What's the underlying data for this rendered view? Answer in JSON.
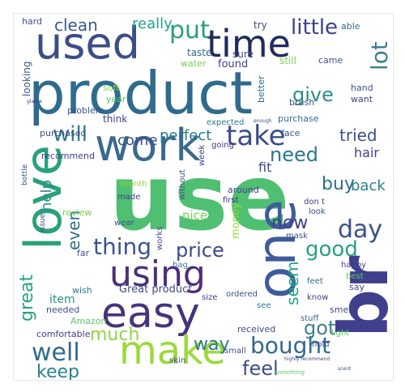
{
  "words": [
    {
      "text": "use",
      "color": "#4fbf72"
    },
    {
      "text": "product",
      "color": "#2f6b8e"
    },
    {
      "text": "used",
      "color": "#3b4d89"
    },
    {
      "text": "br",
      "color": "#3f3f8c"
    },
    {
      "text": "love",
      "color": "#2aa17b"
    },
    {
      "text": "one",
      "color": "#3e5c9c"
    },
    {
      "text": "work",
      "color": "#3a6a8d"
    },
    {
      "text": "easy",
      "color": "#46337e"
    },
    {
      "text": "using",
      "color": "#4b2f7a"
    },
    {
      "text": "time",
      "color": "#1f2c5c"
    },
    {
      "text": "make",
      "color": "#9bd93c"
    },
    {
      "text": "take",
      "color": "#3b4d89"
    },
    {
      "text": "bought",
      "color": "#31688e"
    },
    {
      "text": "lot",
      "color": "#3f7f8e"
    },
    {
      "text": "put",
      "color": "#2a9f7c"
    },
    {
      "text": "little",
      "color": "#3e3f8b"
    },
    {
      "text": "give",
      "color": "#2a8f86"
    },
    {
      "text": "really",
      "color": "#20a486"
    },
    {
      "text": "clean",
      "color": "#38598c"
    },
    {
      "text": "will",
      "color": "#2c7e8e"
    },
    {
      "text": "need",
      "color": "#2a788e"
    },
    {
      "text": "good",
      "color": "#2b9f83"
    },
    {
      "text": "thing",
      "color": "#39558c"
    },
    {
      "text": "much",
      "color": "#8ed645"
    },
    {
      "text": "well",
      "color": "#2f6b8e"
    },
    {
      "text": "keep",
      "color": "#26828e"
    },
    {
      "text": "feel",
      "color": "#3e4c8a"
    },
    {
      "text": "got",
      "color": "#3f7f8e"
    },
    {
      "text": "day",
      "color": "#3a528b"
    },
    {
      "text": "way",
      "color": "#2a788e"
    },
    {
      "text": "price",
      "color": "#3f4889"
    },
    {
      "text": "great",
      "color": "#2b9f83"
    },
    {
      "text": "buy",
      "color": "#2e6d8e"
    },
    {
      "text": "back",
      "color": "#26828e"
    },
    {
      "text": "now",
      "color": "#3f3f8c"
    },
    {
      "text": "tried",
      "color": "#3a528b"
    },
    {
      "text": "seem",
      "color": "#20a486"
    },
    {
      "text": "come",
      "color": "#3e4c8a"
    },
    {
      "text": "perfect",
      "color": "#2a788e"
    },
    {
      "text": "fit",
      "color": "#3e4c8a"
    },
    {
      "text": "hair",
      "color": "#3f3f8c"
    },
    {
      "text": "even",
      "color": "#2e6d8e"
    },
    {
      "text": "help",
      "color": "#2a8f86"
    },
    {
      "text": "nice",
      "color": "#75d054"
    },
    {
      "text": "item",
      "color": "#2a8f86"
    },
    {
      "text": "money",
      "color": "#9bd93c"
    },
    {
      "text": "Great product",
      "color": "#3f4889"
    },
    {
      "text": "found",
      "color": "#3e3f8b"
    },
    {
      "text": "still",
      "color": "#7ad151"
    },
    {
      "text": "came",
      "color": "#3a528b"
    },
    {
      "text": "taste",
      "color": "#31688e"
    },
    {
      "text": "sure",
      "color": "#3b4d89"
    },
    {
      "text": "try",
      "color": "#3e4c8a"
    },
    {
      "text": "able",
      "color": "#2e6d8e"
    },
    {
      "text": "hard",
      "color": "#3a528b"
    },
    {
      "text": "looking",
      "color": "#3a528b"
    },
    {
      "text": "water",
      "color": "#75d054"
    },
    {
      "text": "soft",
      "color": "#8ed645"
    },
    {
      "text": "year",
      "color": "#5ec962"
    },
    {
      "text": "think",
      "color": "#3e3f8b"
    },
    {
      "text": "problem",
      "color": "#3a528b"
    },
    {
      "text": "purchased",
      "color": "#3e4c8a"
    },
    {
      "text": "recommend",
      "color": "#3e3f8b"
    },
    {
      "text": "better",
      "color": "#31688e"
    },
    {
      "text": "brush",
      "color": "#3e4c8a"
    },
    {
      "text": "purchase",
      "color": "#31688e"
    },
    {
      "text": "expected",
      "color": "#2a788e"
    },
    {
      "text": "going",
      "color": "#46337e"
    },
    {
      "text": "face",
      "color": "#3a528b"
    },
    {
      "text": "hand",
      "color": "#3a528b"
    },
    {
      "text": "want",
      "color": "#3e3f8b"
    },
    {
      "text": "around",
      "color": "#3e3f8b"
    },
    {
      "text": "first",
      "color": "#46337e"
    },
    {
      "text": "don t",
      "color": "#3e3f8b"
    },
    {
      "text": "look",
      "color": "#3e4c8a"
    },
    {
      "text": "mask",
      "color": "#3a528b"
    },
    {
      "text": "happy",
      "color": "#3e3f8b"
    },
    {
      "text": "best",
      "color": "#5ec962"
    },
    {
      "text": "say",
      "color": "#3e4c8a"
    },
    {
      "text": "feet",
      "color": "#31688e"
    },
    {
      "text": "know",
      "color": "#3e3f8b"
    },
    {
      "text": "smell",
      "color": "#3e4c8a"
    },
    {
      "text": "ordered",
      "color": "#3a528b"
    },
    {
      "text": "see",
      "color": "#2a788e"
    },
    {
      "text": "received",
      "color": "#3e4c8a"
    },
    {
      "text": "light",
      "color": "#5ec962"
    },
    {
      "text": "hold",
      "color": "#3a528b"
    },
    {
      "text": "stuff",
      "color": "#31688e"
    },
    {
      "text": "small",
      "color": "#3e4c8a"
    },
    {
      "text": "comfortable",
      "color": "#3e3f8b"
    },
    {
      "text": "Amazon",
      "color": "#5ec962"
    },
    {
      "text": "wish",
      "color": "#2a788e"
    },
    {
      "text": "needed",
      "color": "#3e4c8a"
    },
    {
      "text": "wear",
      "color": "#3a528b"
    },
    {
      "text": "review",
      "color": "#75d054"
    },
    {
      "text": "made",
      "color": "#3e3f8b"
    },
    {
      "text": "far",
      "color": "#3e4c8a"
    },
    {
      "text": "bag",
      "color": "#2a788e"
    },
    {
      "text": "size",
      "color": "#3e3f8b"
    },
    {
      "text": "skin",
      "color": "#3e4c8a"
    },
    {
      "text": "works",
      "color": "#3a528b"
    },
    {
      "text": "month",
      "color": "#8ed645"
    },
    {
      "text": "week",
      "color": "#3e3f8b"
    },
    {
      "text": "without",
      "color": "#3a528b"
    },
    {
      "text": "issue",
      "color": "#3e4c8a"
    },
    {
      "text": "bottle",
      "color": "#3a528b"
    },
    {
      "text": "glasse",
      "color": "#3e3f8b"
    },
    {
      "text": "enough",
      "color": "#3e4c8a"
    },
    {
      "text": "highly recommend",
      "color": "#3e3f8b"
    },
    {
      "text": "something",
      "color": "#5ec962"
    },
    {
      "text": "scent",
      "color": "#3e4c8a"
    }
  ]
}
